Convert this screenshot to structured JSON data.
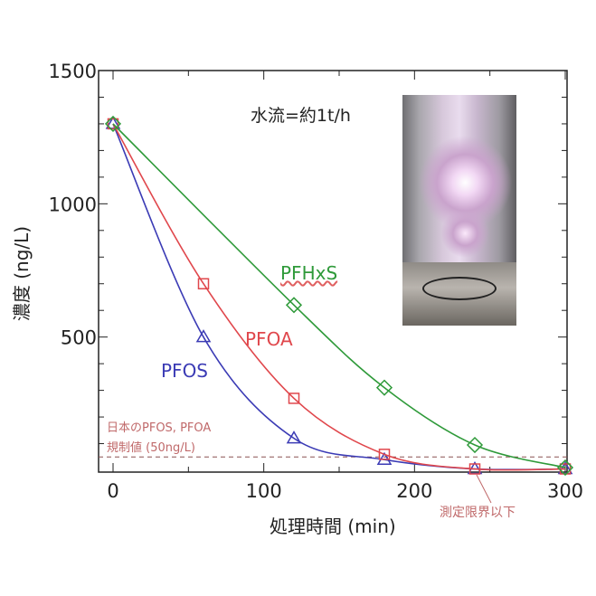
{
  "chart_data": {
    "type": "line",
    "xlabel": "処理時間 (min)",
    "ylabel": "濃度 (ng/L)",
    "xlim": [
      0,
      300
    ],
    "ylim": [
      0,
      1500
    ],
    "xticks": [
      0,
      100,
      200,
      300
    ],
    "yticks": [
      500,
      1000,
      1500
    ],
    "annotation_flow": "水流=約1t/h",
    "regulation_label_1": "日本のPFOS, PFOA",
    "regulation_label_2": "規制値 (50ng/L)",
    "regulation_value": 50,
    "detection_limit_label": "測定限界以下",
    "series": [
      {
        "name": "PFOS",
        "color": "#3b3bb5",
        "marker": "triangle",
        "x": [
          0,
          60,
          120,
          180,
          240,
          300
        ],
        "values": [
          1300,
          500,
          120,
          40,
          5,
          5
        ]
      },
      {
        "name": "PFOA",
        "color": "#e0474c",
        "marker": "square",
        "x": [
          0,
          60,
          120,
          180,
          240,
          300
        ],
        "values": [
          1300,
          700,
          270,
          60,
          5,
          5
        ]
      },
      {
        "name": "PFHxS",
        "color": "#2f9a3a",
        "marker": "diamond",
        "x": [
          0,
          120,
          180,
          240,
          300
        ],
        "values": [
          1300,
          620,
          310,
          95,
          10
        ]
      }
    ]
  }
}
